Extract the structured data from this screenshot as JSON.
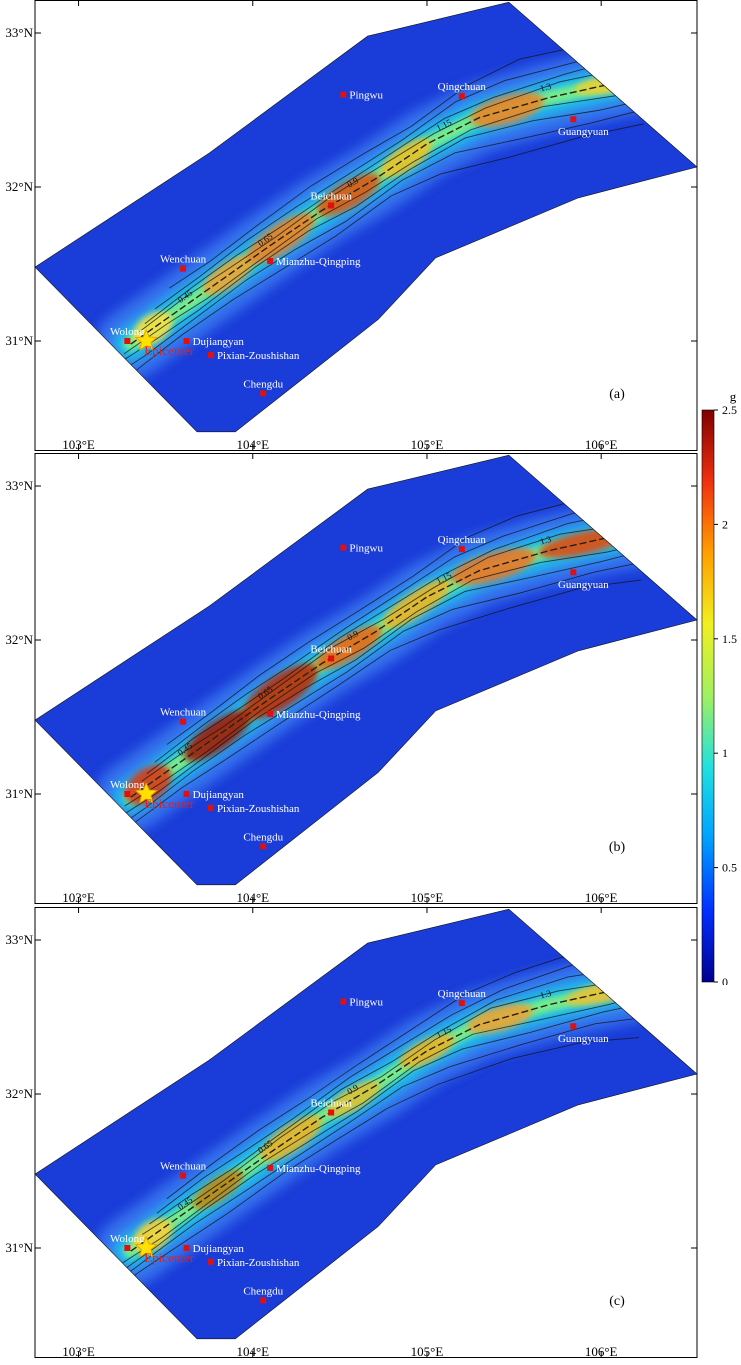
{
  "figure": {
    "panels": [
      {
        "label": "(a)"
      },
      {
        "label": "(b)"
      },
      {
        "label": "(c)"
      }
    ],
    "x_ticks": [
      "103°E",
      "104°E",
      "105°E",
      "106°E"
    ],
    "y_ticks": [
      "31°N",
      "32°N",
      "33°N"
    ],
    "cities": [
      {
        "name": "Pingwu",
        "lon": 104.52,
        "lat": 32.6
      },
      {
        "name": "Qingchuan",
        "lon": 105.2,
        "lat": 32.59
      },
      {
        "name": "Guangyuan",
        "lon": 105.84,
        "lat": 32.44
      },
      {
        "name": "Beichuan",
        "lon": 104.45,
        "lat": 31.88
      },
      {
        "name": "Wenchuan",
        "lon": 103.6,
        "lat": 31.47
      },
      {
        "name": "Mianzhu-Qingping",
        "lon": 104.1,
        "lat": 31.52
      },
      {
        "name": "Wolong",
        "lon": 103.28,
        "lat": 31.0
      },
      {
        "name": "Dujiangyan",
        "lon": 103.62,
        "lat": 31.0
      },
      {
        "name": "Pixian-Zoushishan",
        "lon": 103.76,
        "lat": 30.91
      },
      {
        "name": "Chengdu",
        "lon": 104.06,
        "lat": 30.66
      }
    ],
    "epicenter_label": "Epicenter",
    "epicenter": {
      "lon": 103.4,
      "lat": 31.0
    },
    "contour_labels": [
      "0.45",
      "0.65",
      "0.9",
      "1.15",
      "1.3"
    ],
    "colorbar": {
      "unit": "g",
      "ticks": [
        "0",
        "0.5",
        "1",
        "1.5",
        "2",
        "2.5"
      ],
      "min": 0,
      "max": 2.5,
      "colors": [
        "#00008f",
        "#0030ff",
        "#00a0ff",
        "#20e0e0",
        "#a0f060",
        "#f0f020",
        "#ffa000",
        "#f03010",
        "#7f0000"
      ]
    },
    "map_extent": {
      "lon": [
        102.75,
        106.55
      ],
      "lat": [
        30.4,
        33.2
      ]
    }
  }
}
